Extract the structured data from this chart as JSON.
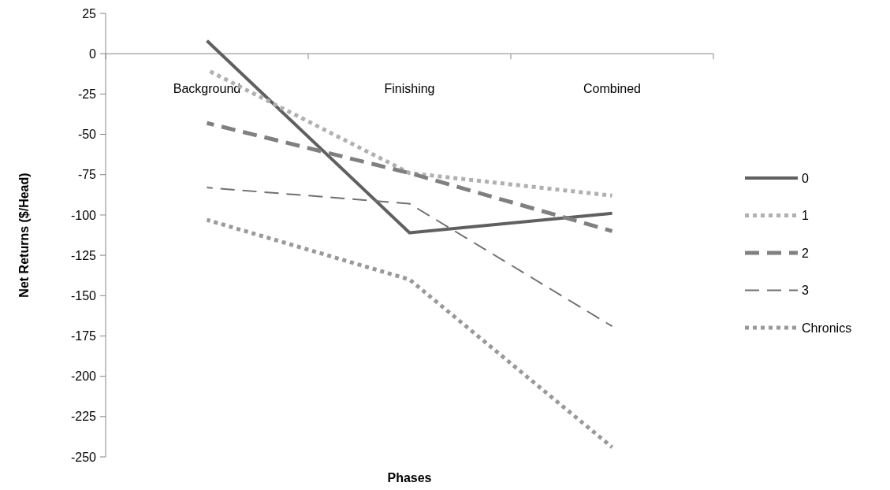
{
  "chart_data": {
    "type": "line",
    "xlabel": "Phases",
    "ylabel": "Net Returns ($/Head)",
    "categories": [
      "Background",
      "Finishing",
      "Combined"
    ],
    "series": [
      {
        "name": "0",
        "color": "#606060",
        "line_style": "solid",
        "values": [
          8,
          -111,
          -99
        ]
      },
      {
        "name": "1",
        "color": "#b0b0b0",
        "line_style": "dotted",
        "values": [
          -10,
          -74,
          -88
        ]
      },
      {
        "name": "2",
        "color": "#808080",
        "line_style": "dashed",
        "values": [
          -43,
          -74,
          -110
        ]
      },
      {
        "name": "3",
        "color": "#707070",
        "line_style": "dashed",
        "values": [
          -83,
          -93,
          -169
        ]
      },
      {
        "name": "Chronics",
        "color": "#999999",
        "line_style": "dotted",
        "values": [
          -103,
          -140,
          -244
        ]
      }
    ],
    "ylim": [
      -250,
      25
    ],
    "yticks": [
      -250,
      -225,
      -200,
      -175,
      -150,
      -125,
      -100,
      -75,
      -50,
      -25,
      0,
      25
    ],
    "grid": false,
    "legend": "right"
  }
}
